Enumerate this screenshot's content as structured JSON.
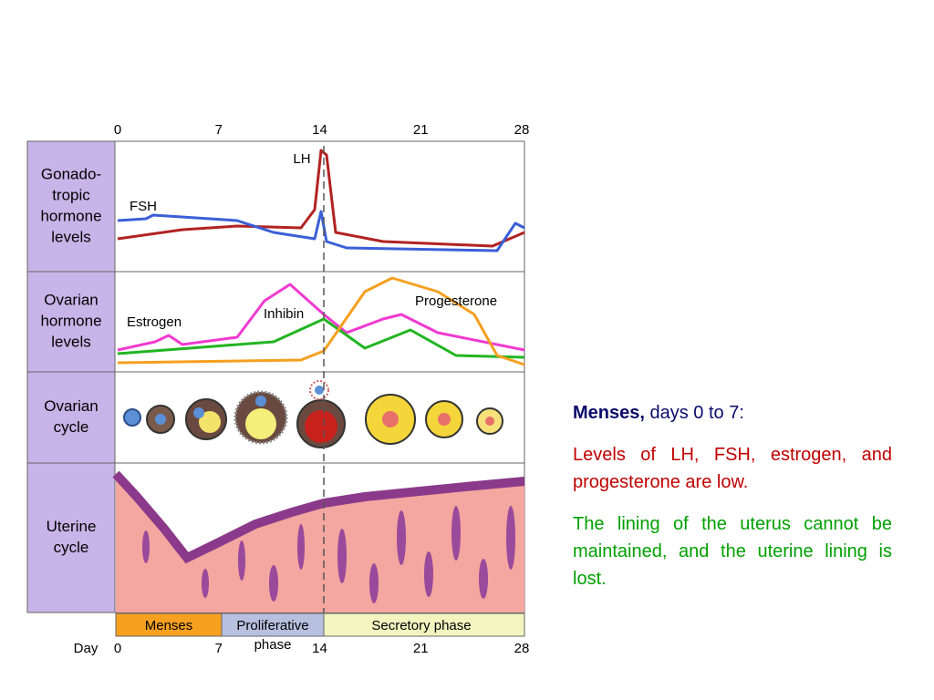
{
  "diagram": {
    "day_ticks_top": [
      "0",
      "7",
      "14",
      "21",
      "28"
    ],
    "rows": [
      {
        "lines": [
          "Gonado-",
          "tropic",
          "hormone",
          "levels"
        ]
      },
      {
        "lines": [
          "Ovarian",
          "hormone",
          "levels"
        ]
      },
      {
        "lines": [
          "Ovarian",
          "cycle"
        ]
      },
      {
        "lines": [
          "Uterine",
          "cycle"
        ]
      }
    ],
    "curve_labels": {
      "lh": "LH",
      "fsh": "FSH",
      "estrogen": "Estrogen",
      "inhibin": "Inhibin",
      "progesterone": "Progesterone"
    },
    "phases": [
      {
        "lines": [
          "Menses"
        ]
      },
      {
        "lines": [
          "Proliferative",
          "phase"
        ]
      },
      {
        "lines": [
          "Secretory phase"
        ]
      }
    ],
    "day_label": "Day",
    "day_ticks_bottom": [
      "0",
      "7",
      "14",
      "21",
      "28"
    ]
  },
  "text": {
    "heading": "Menses,",
    "heading_rest": "days 0 to 7:",
    "paragraph_1": "Levels of LH, FSH, estrogen, and progesterone are low.",
    "paragraph_2": "The lining of the uterus cannot be maintained, and the uterine lining is lost."
  }
}
